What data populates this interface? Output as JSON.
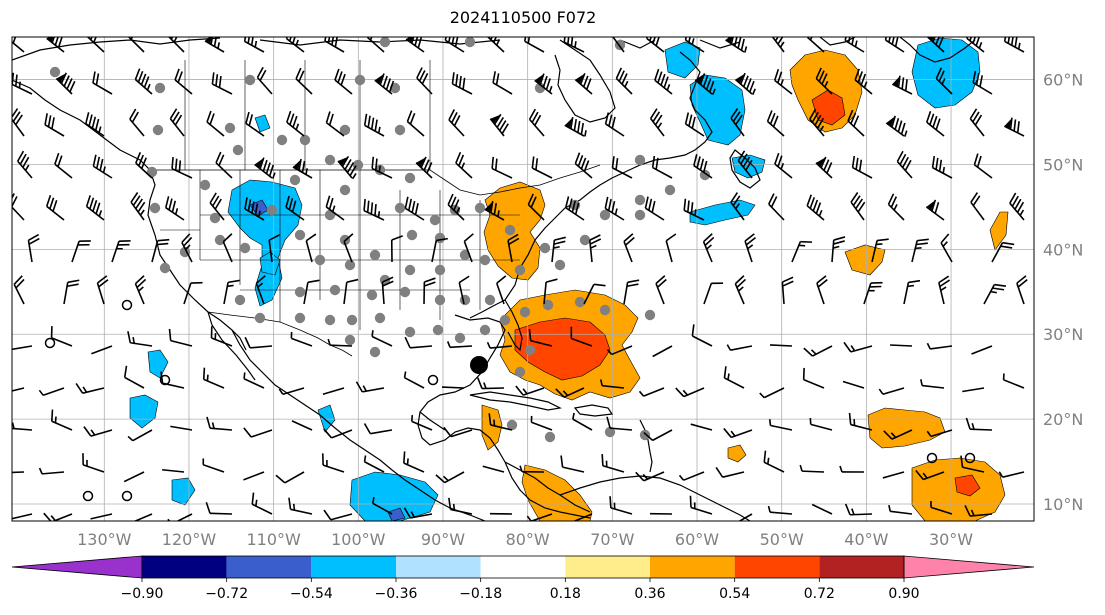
{
  "title": "2024110500 F072",
  "axes": {
    "lon_labels": [
      "130°W",
      "120°W",
      "110°W",
      "100°W",
      "90°W",
      "80°W",
      "70°W",
      "60°W",
      "50°W",
      "40°W",
      "30°W"
    ],
    "lon_values": [
      -130,
      -120,
      -110,
      -100,
      -90,
      -80,
      -70,
      -60,
      -50,
      -40,
      -30
    ],
    "lat_labels": [
      "60°N",
      "50°N",
      "40°N",
      "30°N",
      "20°N",
      "10°N"
    ],
    "lat_values": [
      60,
      50,
      40,
      30,
      20,
      10
    ],
    "label_color": "#808080"
  },
  "colorbar": {
    "colors": [
      "#9932cc",
      "#000080",
      "#3a5fcd",
      "#00bfff",
      "#b0e2ff",
      "#ffffff",
      "#ffec8b",
      "#ffa500",
      "#ff4500",
      "#b22222",
      "#ff82ab"
    ],
    "tick_labels": [
      "−0.90",
      "−0.72",
      "−0.54",
      "−0.36",
      "−0.18",
      "0.18",
      "0.36",
      "0.54",
      "0.72",
      "0.90"
    ]
  },
  "colors": {
    "positive_main": "#ffa500",
    "positive_strong": "#ff4500",
    "negative_main": "#00bfff",
    "negative_strong": "#3a5fcd",
    "station": "#808080",
    "gridline": "#b0b0b0"
  }
}
